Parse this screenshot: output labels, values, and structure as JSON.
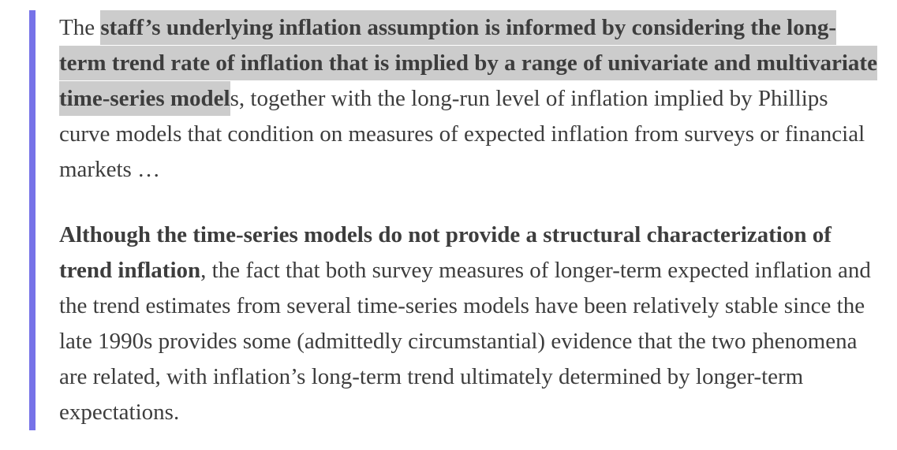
{
  "page": {
    "background_color": "#ffffff"
  },
  "quote": {
    "accent_bar_color": "#7672e8",
    "highlight_color": "#cccccc",
    "text_color": "#3d3d3d",
    "paragraphs": [
      {
        "runs": [
          {
            "text": "The ",
            "style": "normal"
          },
          {
            "text": "staff’s underlying inflation assumption is informed by considering the long-term trend rate of inflation that is implied by a range of univariate and multivariate time-series model",
            "style": "bold-highlight"
          },
          {
            "text": "s, together with the long-run level of inflation implied by Phillips curve models that condition on measures of expected inflation from surveys or financial markets …",
            "style": "normal"
          }
        ]
      },
      {
        "runs": [
          {
            "text": "Although the time-series models do not provide a structural characterization of trend inflation",
            "style": "bold"
          },
          {
            "text": ", the fact that both survey measures of longer-term expected inflation and the trend estimates from several time-series models have been relatively stable since the late 1990s provides some (admittedly circumstantial) evidence that the two phenomena are related, with inflation’s long-term trend ultimately determined by longer-term expectations.",
            "style": "normal"
          }
        ]
      }
    ]
  }
}
